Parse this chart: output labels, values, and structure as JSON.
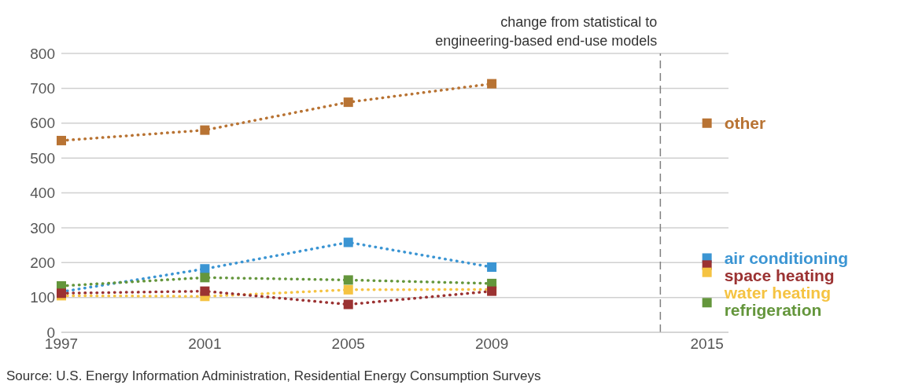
{
  "chart_data": {
    "type": "line",
    "x": [
      1997,
      2001,
      2005,
      2009,
      2015
    ],
    "xlim": [
      1997,
      2015.6
    ],
    "xticks": [
      1997,
      2001,
      2005,
      2009,
      2015
    ],
    "ylim": [
      0,
      800
    ],
    "yticks": [
      0,
      100,
      200,
      300,
      400,
      500,
      600,
      700,
      800
    ],
    "grid": "y",
    "marker": "square",
    "line_style": "dotted",
    "series": [
      {
        "color": "#b87333",
        "values": [
          550,
          580,
          660,
          713,
          null
        ]
      },
      {
        "color": "#3b95d3",
        "values": [
          116,
          182,
          258,
          187,
          null
        ]
      },
      {
        "color": "#f5c342",
        "values": [
          105,
          103,
          122,
          123,
          null
        ]
      },
      {
        "color": "#64963c",
        "values": [
          133,
          157,
          150,
          140,
          null
        ]
      },
      {
        "color": "#9b3232",
        "values": [
          112,
          118,
          80,
          118,
          null
        ]
      },
      {
        "type": "scatter",
        "name": "other",
        "color": "#b87333",
        "values": [
          null,
          null,
          null,
          null,
          600
        ]
      },
      {
        "type": "scatter",
        "name": "air conditioning",
        "color": "#3b95d3",
        "values": [
          null,
          null,
          null,
          null,
          213
        ]
      },
      {
        "type": "scatter",
        "name": "space heating",
        "color": "#9b3232",
        "values": [
          null,
          null,
          null,
          null,
          193
        ]
      },
      {
        "type": "scatter",
        "name": "water heating",
        "color": "#f5c342",
        "values": [
          null,
          null,
          null,
          null,
          172
        ]
      },
      {
        "type": "scatter",
        "name": "refrigeration",
        "color": "#64963c",
        "values": [
          null,
          null,
          null,
          null,
          85
        ]
      }
    ],
    "ref_lines": [
      {
        "axis": "x",
        "value": 2013.7,
        "label": "change from statistical to engineering-based end-use models",
        "color": "#808080",
        "line_style": "dashed"
      }
    ],
    "annotations": [
      "Source: U.S. Energy Information Administration, Residential Energy Consumption Surveys"
    ]
  }
}
